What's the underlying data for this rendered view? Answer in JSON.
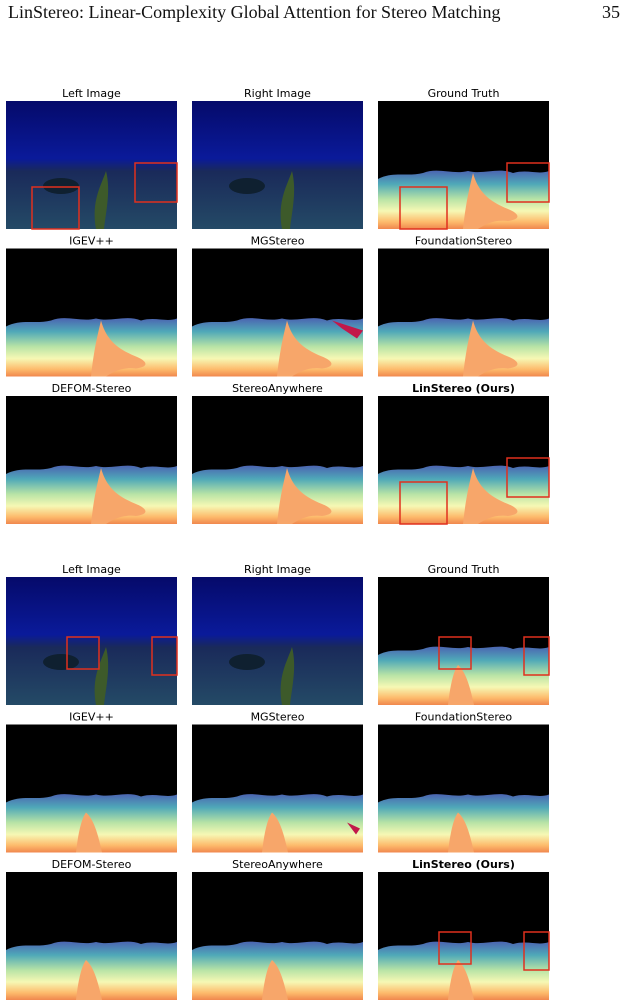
{
  "header": {
    "title": "LinStereo: Linear-Complexity Global Attention for Stereo Matching",
    "page_number": "35"
  },
  "figure": {
    "groups": [
      {
        "panels": [
          {
            "label": "Left Image"
          },
          {
            "label": "Right Image"
          },
          {
            "label": "Ground Truth"
          },
          {
            "label": "IGEV++"
          },
          {
            "label": "MGStereo"
          },
          {
            "label": "FoundationStereo"
          },
          {
            "label": "DEFOM-Stereo"
          },
          {
            "label": "StereoAnywhere"
          },
          {
            "label": "LinStereo (Ours)"
          }
        ]
      },
      {
        "panels": [
          {
            "label": "Left Image"
          },
          {
            "label": "Right Image"
          },
          {
            "label": "Ground Truth"
          },
          {
            "label": "IGEV++"
          },
          {
            "label": "MGStereo"
          },
          {
            "label": "FoundationStereo"
          },
          {
            "label": "DEFOM-Stereo"
          },
          {
            "label": "StereoAnywhere"
          },
          {
            "label": "LinStereo (Ours)"
          }
        ]
      }
    ]
  }
}
